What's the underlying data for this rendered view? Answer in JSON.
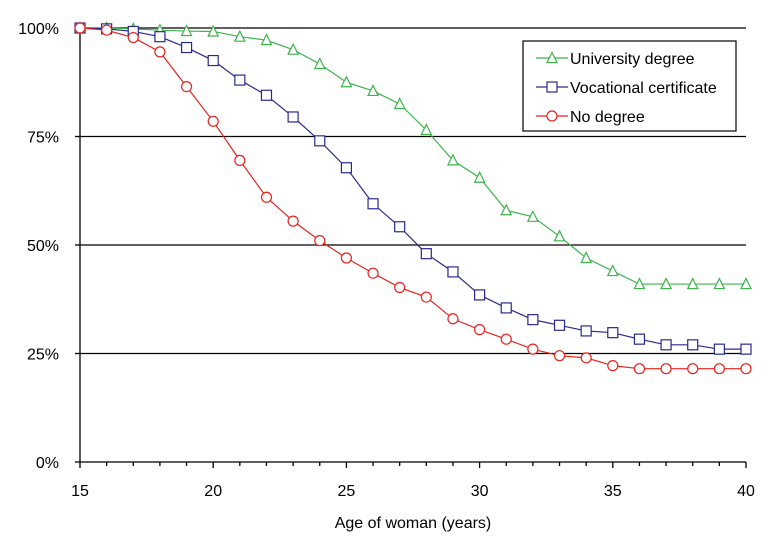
{
  "chart_data": {
    "type": "line",
    "title": "",
    "xlabel": "Age of woman (years)",
    "ylabel": "",
    "xlim": [
      15,
      40
    ],
    "ylim": [
      0,
      100
    ],
    "x_ticks": [
      15,
      20,
      25,
      30,
      35,
      40
    ],
    "y_ticks": [
      0,
      25,
      50,
      75,
      100
    ],
    "y_tick_labels": [
      "0%",
      "25%",
      "50%",
      "75%",
      "100%"
    ],
    "grid": "horizontal",
    "legend_position": "top-right",
    "x": [
      15,
      16,
      17,
      18,
      19,
      20,
      21,
      22,
      23,
      24,
      25,
      26,
      27,
      28,
      29,
      30,
      31,
      32,
      33,
      34,
      35,
      36,
      37,
      38,
      39,
      40
    ],
    "series": [
      {
        "name": "University degree",
        "color": "#3cb44b",
        "marker": "triangle",
        "values": [
          100,
          100,
          99.8,
          99.5,
          99.3,
          99.2,
          98,
          97.2,
          95,
          91.7,
          87.5,
          85.5,
          82.5,
          76.5,
          69.5,
          65.5,
          58,
          56.5,
          52,
          47,
          44,
          41,
          41,
          41,
          41,
          41
        ]
      },
      {
        "name": "Vocational certificate",
        "color": "#2a2a8c",
        "marker": "square",
        "values": [
          100,
          99.8,
          99.2,
          98,
          95.5,
          92.5,
          88,
          84.5,
          79.5,
          74,
          67.8,
          59.5,
          54.2,
          48,
          43.8,
          38.5,
          35.5,
          32.8,
          31.5,
          30.2,
          29.8,
          28.3,
          27,
          27,
          26,
          26
        ]
      },
      {
        "name": "No degree",
        "color": "#e8231e",
        "marker": "circle",
        "values": [
          100,
          99.5,
          97.8,
          94.5,
          86.5,
          78.5,
          69.5,
          61,
          55.5,
          51,
          47,
          43.5,
          40.2,
          38,
          33,
          30.5,
          28.3,
          26,
          24.5,
          24,
          22.2,
          21.5,
          21.5,
          21.5,
          21.5,
          21.5
        ]
      }
    ]
  }
}
